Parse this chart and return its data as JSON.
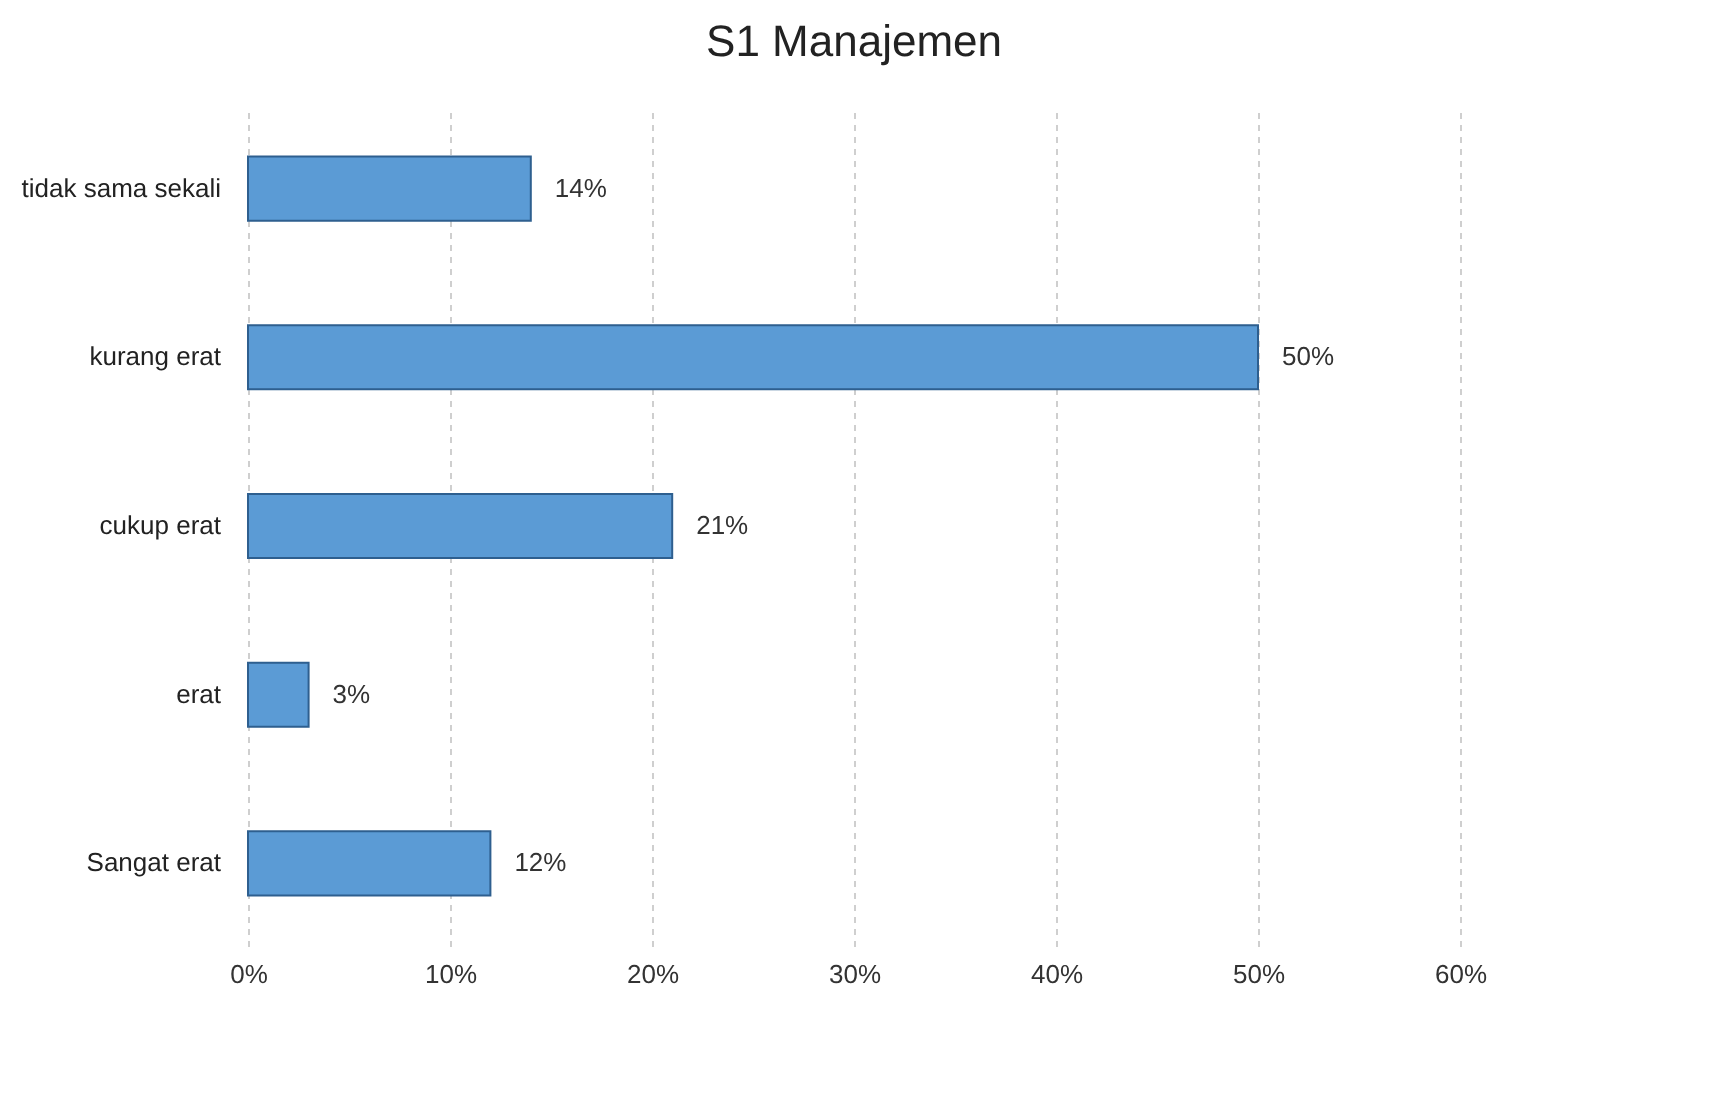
{
  "chart_data": {
    "type": "bar",
    "title": "S1 Manajemen",
    "orientation": "horizontal",
    "categories": [
      "tidak sama sekali",
      "kurang erat",
      "cukup erat",
      "erat",
      "Sangat erat"
    ],
    "values": [
      14,
      50,
      21,
      3,
      12
    ],
    "value_labels": [
      "14%",
      "50%",
      "21%",
      "3%",
      "12%"
    ],
    "color": "#5b9bd5",
    "xlim": [
      0,
      60
    ],
    "xticks": [
      {
        "value": 0,
        "label": "0%"
      },
      {
        "value": 10,
        "label": "10%"
      },
      {
        "value": 20,
        "label": "20%"
      },
      {
        "value": 30,
        "label": "30%"
      },
      {
        "value": 40,
        "label": "40%"
      },
      {
        "value": 50,
        "label": "50%"
      },
      {
        "value": 60,
        "label": "60%"
      }
    ],
    "grid": "x"
  }
}
